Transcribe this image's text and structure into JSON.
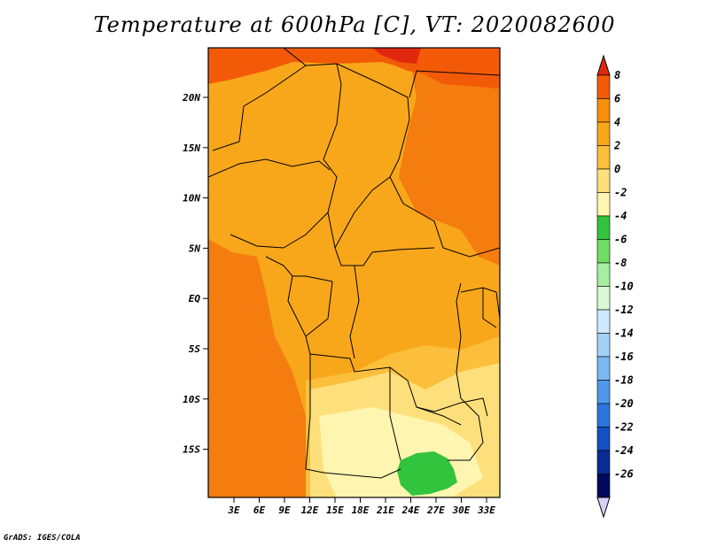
{
  "title": "Temperature at 600hPa [C], VT: 2020082600",
  "credit": "GrADS: IGES/COLA",
  "lat_ticks": [
    "20N",
    "15N",
    "10N",
    "5N",
    "EQ",
    "5S",
    "10S",
    "15S"
  ],
  "lon_ticks": [
    "3E",
    "6E",
    "9E",
    "12E",
    "15E",
    "18E",
    "21E",
    "24E",
    "27E",
    "30E",
    "33E"
  ],
  "colorbar": {
    "levels": [
      "8",
      "6",
      "4",
      "2",
      "0",
      "-2",
      "-4",
      "-6",
      "-8",
      "-10",
      "-12",
      "-14",
      "-16",
      "-18",
      "-20",
      "-22",
      "-24",
      "-26"
    ],
    "colors": [
      "#e0280e",
      "#f35a08",
      "#f78f0c",
      "#f9a71a",
      "#fbbf3c",
      "#fde07c",
      "#fef6b0",
      "#32c43c",
      "#6fdc62",
      "#a6eea0",
      "#d9f8d4",
      "#cfe8fb",
      "#a4d2f7",
      "#7cb8f2",
      "#4e99ea",
      "#2c76dc",
      "#1351c2",
      "#0a2d93",
      "#000a5c",
      "#d7d0f5"
    ]
  },
  "map": {
    "lon_range": [
      0,
      35
    ],
    "lat_range": [
      -20,
      25
    ],
    "field_colors": {
      "warm_north": "#f9a71a",
      "hot_band": "#f35a08",
      "hottest": "#e0280e",
      "mild": "#fbbf3c",
      "cool_south": "#fde07c",
      "coolest": "#fef6b0",
      "green": "#32c43c"
    }
  }
}
